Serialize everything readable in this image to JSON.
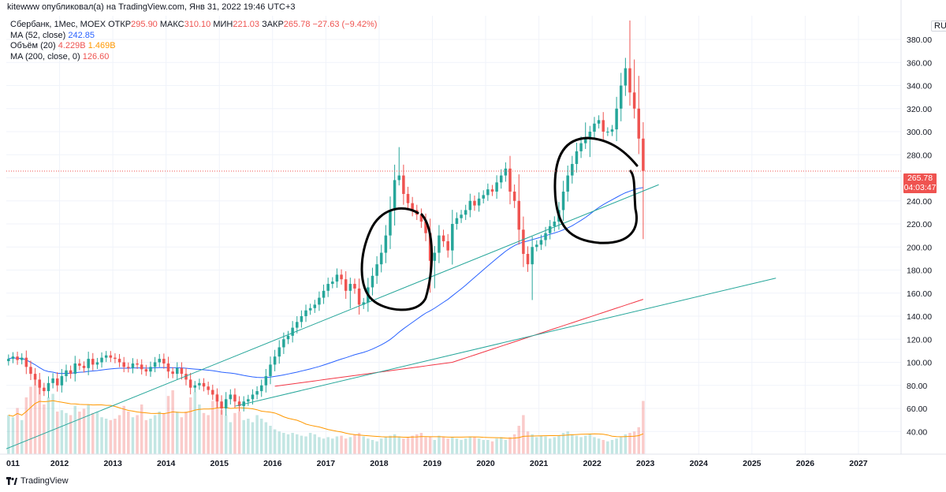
{
  "header": {
    "publisher": "kitewww опубликовал(а) на TradingView.com, Янв 31, 2022 19:46 UTC+3"
  },
  "legend": {
    "symbol": "Сбербанк, 1Мес, MOEX",
    "open_label": "ОТКР",
    "open": "295.90",
    "high_label": "МАКС",
    "high": "310.10",
    "low_label": "МИН",
    "low": "221.03",
    "close_label": "ЗАКР",
    "close": "265.78",
    "change": "−27.63 (−9.42%)",
    "ma52_label": "MA (52, close)",
    "ma52_value": "242.85",
    "volume_label": "Объём (20)",
    "volume_value": "4.229B",
    "volume_ma": "1.469B",
    "ma200_label": "MA (200, close, 0)",
    "ma200_value": "126.60"
  },
  "price_axis": {
    "currency": "RUB",
    "current_price": "265.78",
    "countdown": "04:03:47"
  },
  "footer": {
    "brand": "TradingView"
  },
  "colors": {
    "up": "#26a69a",
    "down": "#ef5350",
    "ma52": "#2962ff",
    "ma200": "#f23645",
    "volume_ma": "#ff9800",
    "trendline": "#26a69a",
    "drawing": "#000000"
  },
  "chart_data": {
    "type": "candlestick",
    "title": "Сбербанк, 1Мес, MOEX",
    "xlabel": "",
    "ylabel": "RUB",
    "y_ticks": [
      40,
      60,
      80,
      100,
      120,
      140,
      160,
      180,
      200,
      220,
      240,
      260,
      280,
      300,
      320,
      340,
      360,
      380
    ],
    "ylim": [
      22,
      400
    ],
    "x_ticks": [
      "011",
      "2012",
      "2013",
      "2014",
      "2015",
      "2016",
      "2017",
      "2018",
      "2019",
      "2020",
      "2021",
      "2022",
      "2023",
      "2024",
      "2025",
      "2026",
      "2027"
    ],
    "xlim": [
      2011.0,
      2027.8
    ],
    "closes": [
      103,
      105,
      102,
      104,
      96,
      90,
      85,
      78,
      75,
      82,
      86,
      80,
      88,
      93,
      90,
      99,
      97,
      95,
      103,
      98,
      100,
      104,
      106,
      104,
      103,
      100,
      96,
      95,
      99,
      98,
      94,
      92,
      96,
      100,
      103,
      99,
      92,
      90,
      95,
      90,
      85,
      78,
      80,
      82,
      79,
      76,
      72,
      66,
      60,
      68,
      72,
      66,
      62,
      66,
      68,
      72,
      75,
      80,
      88,
      98,
      105,
      113,
      120,
      123,
      130,
      135,
      140,
      145,
      147,
      150,
      156,
      162,
      168,
      170,
      176,
      172,
      162,
      168,
      164,
      150,
      152,
      165,
      175,
      185,
      195,
      210,
      232,
      258,
      262,
      246,
      238,
      232,
      228,
      222,
      212,
      188,
      195,
      210,
      205,
      197,
      220,
      225,
      228,
      232,
      240,
      236,
      242,
      245,
      250,
      248,
      256,
      262,
      268,
      248,
      240,
      215,
      194,
      185,
      200,
      202,
      206,
      212,
      218,
      222,
      232,
      248,
      262,
      272,
      283,
      290,
      295,
      300,
      307,
      310,
      300,
      300,
      302,
      320,
      340,
      355,
      334,
      320,
      294,
      266
    ],
    "volumes": [
      55,
      52,
      65,
      48,
      80,
      95,
      105,
      95,
      70,
      80,
      85,
      60,
      62,
      58,
      55,
      68,
      60,
      64,
      70,
      58,
      60,
      52,
      50,
      48,
      50,
      55,
      68,
      60,
      52,
      55,
      70,
      48,
      50,
      55,
      60,
      58,
      82,
      90,
      60,
      52,
      60,
      80,
      88,
      70,
      58,
      55,
      75,
      85,
      62,
      55,
      45,
      58,
      60,
      48,
      50,
      45,
      55,
      50,
      45,
      40,
      35,
      32,
      30,
      28,
      30,
      28,
      26,
      25,
      30,
      28,
      24,
      22,
      24,
      22,
      25,
      26,
      22,
      24,
      28,
      30,
      25,
      22,
      20,
      18,
      22,
      24,
      26,
      28,
      25,
      22,
      24,
      26,
      28,
      30,
      24,
      25,
      20,
      26,
      24,
      22,
      24,
      22,
      20,
      22,
      25,
      24,
      22,
      20,
      20,
      18,
      22,
      24,
      20,
      24,
      28,
      40,
      55,
      32,
      28,
      24,
      26,
      25,
      22,
      24,
      26,
      30,
      32,
      28,
      26,
      24,
      26,
      28,
      24,
      22,
      20,
      18,
      20,
      22,
      24,
      28,
      30,
      32,
      38,
      75
    ],
    "first_month": "2011-01",
    "series": [
      {
        "name": "MA (52, close)",
        "last": 242.85
      },
      {
        "name": "MA (200, close, 0)",
        "last": 126.6
      },
      {
        "name": "Объём (20)",
        "last": "4.229B",
        "ma": "1.469B"
      }
    ],
    "annotations": [
      "two ascending trendlines",
      "two hand-drawn circles"
    ]
  }
}
